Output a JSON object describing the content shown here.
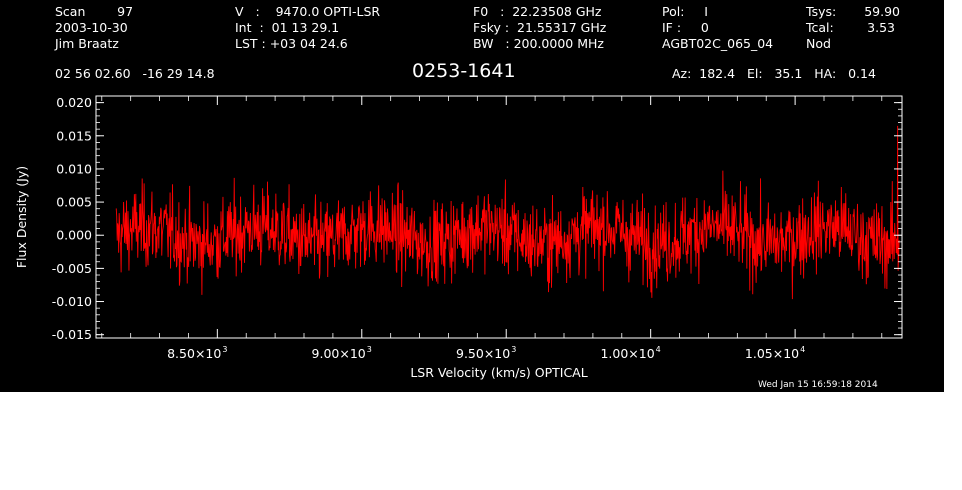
{
  "header": {
    "col1": [
      "Scan        97",
      "2003-10-30",
      "Jim Braatz"
    ],
    "col2": [
      "V   :    9470.0 OPTI-LSR",
      "Int  :  01 13 29.1",
      "LST : +03 04 24.6"
    ],
    "col3": [
      "F0   :  22.23508 GHz",
      "Fsky :  21.55317 GHz",
      "BW   : 200.0000 MHz"
    ],
    "col4": [
      "Pol:     I",
      "IF :     0",
      "AGBT02C_065_04"
    ],
    "col5a": [
      "Tsys:",
      "Tcal:",
      "Nod"
    ],
    "col5b": [
      "59.90",
      "3.53",
      ""
    ],
    "coords": "02 56 02.60   -16 29 14.8",
    "source": "0253-1641",
    "azelha": "Az:  182.4   El:   35.1   HA:   0.14",
    "timestamp": "Wed Jan 15 16:59:18 2014"
  },
  "chart_data": {
    "type": "line",
    "xlabel": "LSR Velocity (km/s) OPTICAL",
    "ylabel": "Flux Density (Jy)",
    "xlim": [
      8080,
      10870
    ],
    "ylim": [
      -0.0155,
      0.021
    ],
    "yticks": [
      -0.015,
      -0.01,
      -0.005,
      0.0,
      0.005,
      0.01,
      0.015,
      0.02
    ],
    "ytick_labels": [
      "-0.015",
      "-0.010",
      "-0.005",
      "0.000",
      "0.005",
      "0.010",
      "0.015",
      "0.020"
    ],
    "xticks": [
      8500,
      9000,
      9500,
      10000,
      10500
    ],
    "xtick_mantissas": [
      "8.50×10",
      "9.00×10",
      "9.50×10",
      "1.00×10",
      "1.05×10"
    ],
    "xtick_exponents": [
      "3",
      "3",
      "3",
      "4",
      "4"
    ],
    "series": [
      {
        "color": "#ff0000",
        "x_start": 8150,
        "x_end": 10860,
        "n_points": 1600,
        "baseline_mean": 0.0,
        "noise_rms": 0.0032,
        "envelope": [
          -0.01,
          0.012
        ],
        "end_spike": {
          "x": 10855,
          "y": 0.0165
        }
      }
    ]
  }
}
